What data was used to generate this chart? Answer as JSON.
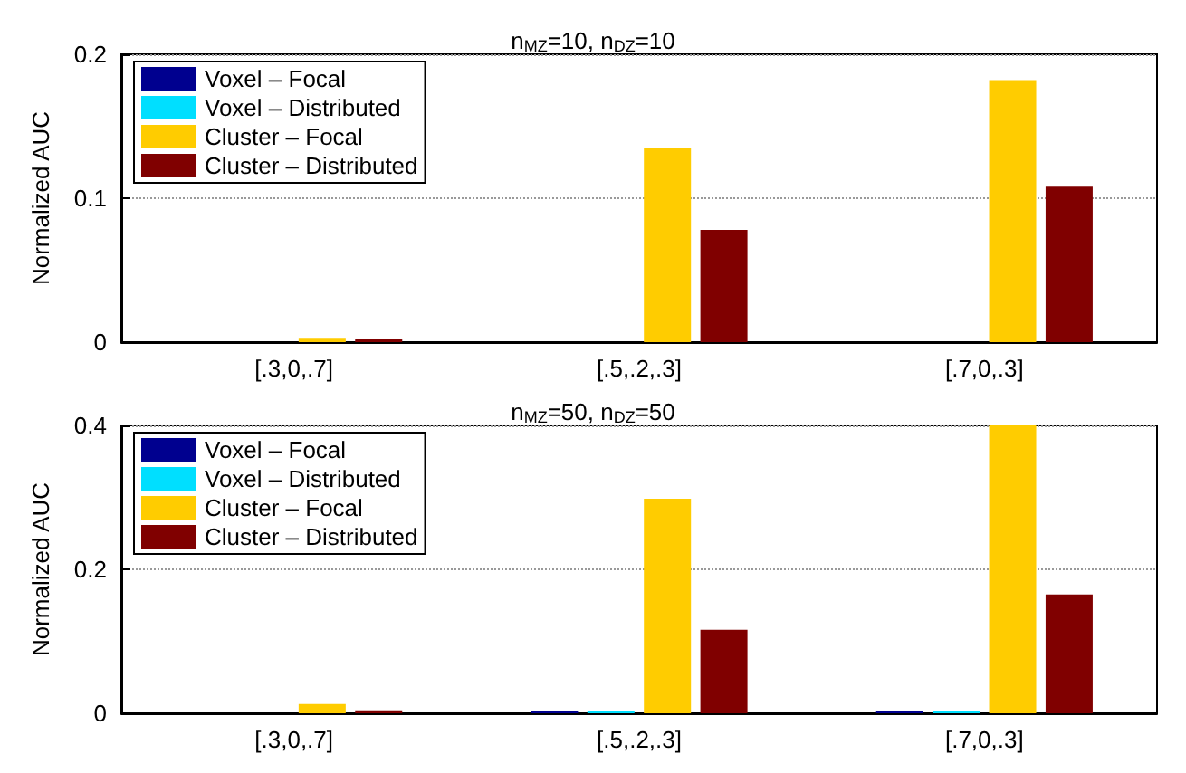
{
  "chart_data": [
    {
      "type": "bar",
      "title": "n$_{MZ}$=10, n$_{DZ}$=10",
      "ylabel": "Normalized AUC",
      "categories": [
        "[.3,0,.7]",
        "[.5,.2,.3]",
        "[.7,0,.3]"
      ],
      "series": [
        {
          "name": "Voxel – Focal",
          "color": "#00008f",
          "values": [
            null,
            null,
            null
          ]
        },
        {
          "name": "Voxel – Distributed",
          "color": "#00dfff",
          "values": [
            null,
            null,
            null
          ]
        },
        {
          "name": "Cluster – Focal",
          "color": "#ffcc00",
          "values": [
            0.003,
            0.135,
            0.182
          ]
        },
        {
          "name": "Cluster – Distributed",
          "color": "#800000",
          "values": [
            0.002,
            0.078,
            0.108
          ]
        }
      ],
      "ylim": [
        0,
        0.2
      ],
      "yticks": [
        0,
        0.1,
        0.2
      ],
      "grid": "y",
      "legend": "top left"
    },
    {
      "type": "bar",
      "title": "n$_{MZ}$=50, n$_{DZ}$=50",
      "ylabel": "Normalized AUC",
      "categories": [
        "[.3,0,.7]",
        "[.5,.2,.3]",
        "[.7,0,.3]"
      ],
      "series": [
        {
          "name": "Voxel – Focal",
          "color": "#00008f",
          "values": [
            null,
            0.003,
            0.003
          ]
        },
        {
          "name": "Voxel – Distributed",
          "color": "#00dfff",
          "values": [
            null,
            0.003,
            0.003
          ]
        },
        {
          "name": "Cluster – Focal",
          "color": "#ffcc00",
          "values": [
            0.013,
            0.298,
            0.4
          ]
        },
        {
          "name": "Cluster – Distributed",
          "color": "#800000",
          "values": [
            0.004,
            0.116,
            0.165
          ]
        }
      ],
      "ylim": [
        0,
        0.4
      ],
      "yticks": [
        0,
        0.2,
        0.4
      ],
      "grid": "y",
      "legend": "top left"
    }
  ]
}
